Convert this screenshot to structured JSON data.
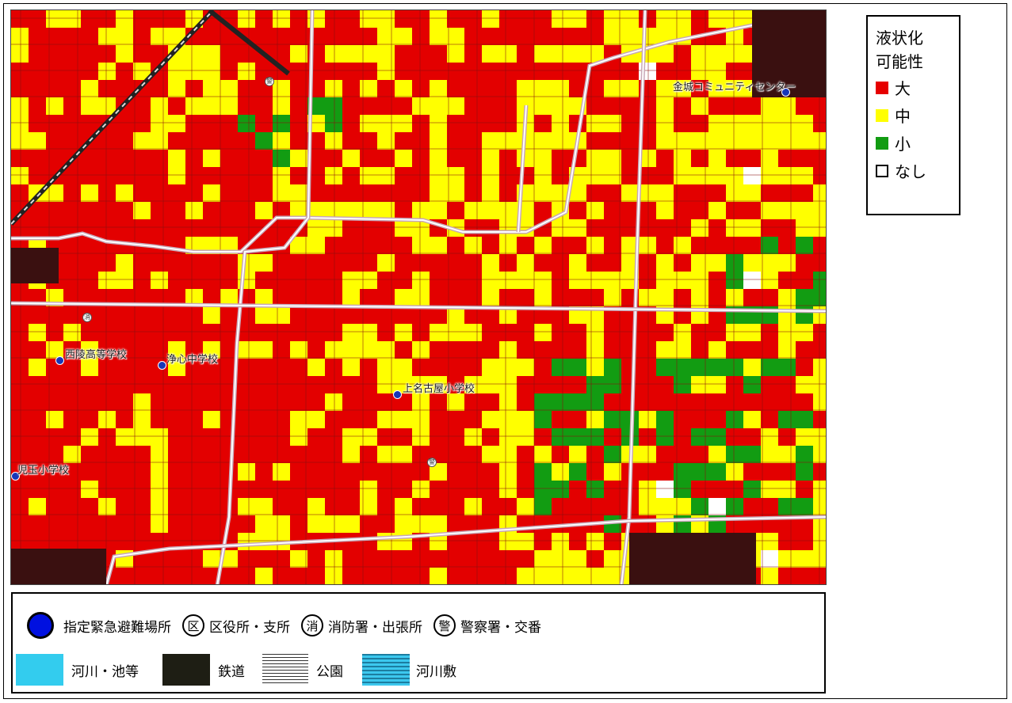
{
  "liquefaction_legend": {
    "title_line1": "液状化",
    "title_line2": "可能性",
    "items": [
      {
        "label": "大",
        "color": "#e60000"
      },
      {
        "label": "中",
        "color": "#ffff00"
      },
      {
        "label": "小",
        "color": "#129c12"
      },
      {
        "label": "なし",
        "color": "#ffffff"
      }
    ]
  },
  "map": {
    "colors": {
      "high": "#e30000",
      "medium": "#ffff00",
      "low": "#129c12",
      "none": "#ffffff",
      "road": "#c8a8b8",
      "rail": "#3a1010"
    },
    "labels": [
      {
        "text": "金城コミュニティセンター",
        "icon": "shelter-dot"
      },
      {
        "text": "西陵高等学校",
        "icon": "shelter-dot"
      },
      {
        "text": "浄心中学校",
        "icon": "shelter-dot"
      },
      {
        "text": "上名古屋小学校",
        "icon": "shelter-dot"
      },
      {
        "text": "児玉小学校",
        "icon": "shelter-dot"
      }
    ],
    "symbols": [
      {
        "glyph": "警"
      },
      {
        "glyph": "消"
      },
      {
        "glyph": "警"
      }
    ]
  },
  "symbol_legend": {
    "row1": [
      {
        "icon": "emergency-shelter-dot-icon",
        "label": "指定緊急避難場所"
      },
      {
        "icon": "ward-office-icon",
        "glyph": "区",
        "label": "区役所・支所"
      },
      {
        "icon": "fire-station-icon",
        "glyph": "消",
        "label": "消防署・出張所"
      },
      {
        "icon": "police-station-icon",
        "glyph": "警",
        "label": "警察署・交番"
      }
    ],
    "row2": [
      {
        "icon": "river-swatch-icon",
        "label": "河川・池等"
      },
      {
        "icon": "railway-swatch-icon",
        "label": "鉄道"
      },
      {
        "icon": "park-swatch-icon",
        "label": "公園"
      },
      {
        "icon": "riverbed-swatch-icon",
        "label": "河川敷"
      }
    ]
  }
}
